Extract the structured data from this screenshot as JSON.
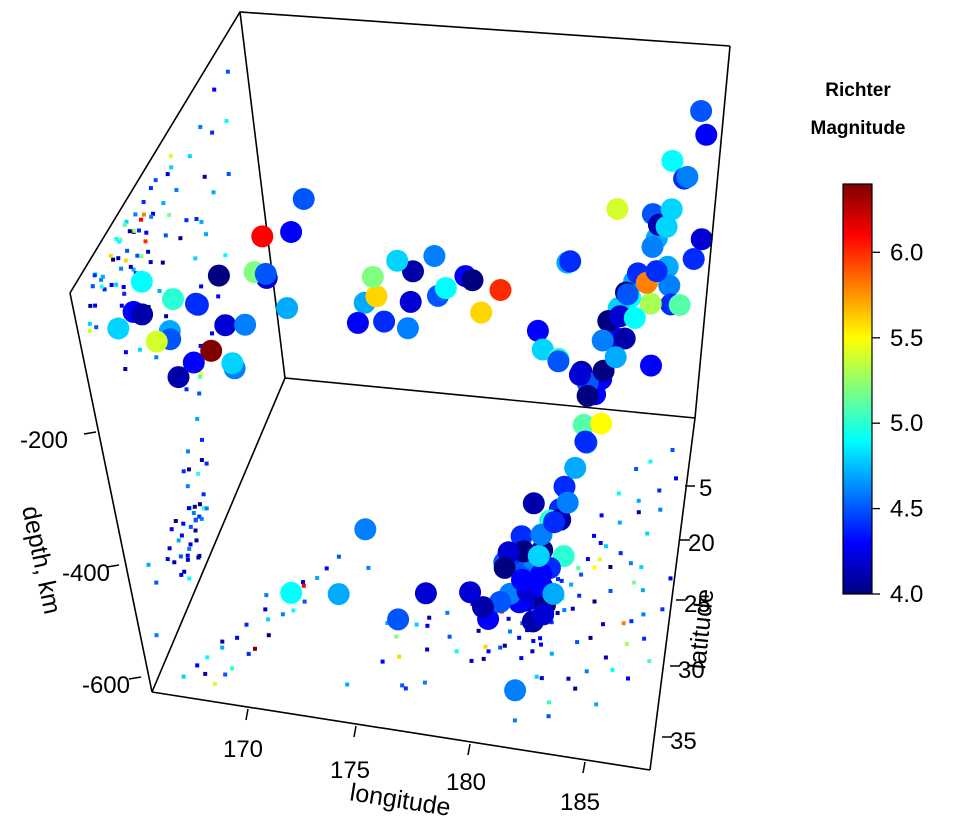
{
  "chart_data": {
    "type": "scatter",
    "subtype": "3d-scatter",
    "xlabel": "longitude",
    "ylabel": "latitude",
    "zlabel": "depth, km",
    "x_ticks": [
      "170",
      "175",
      "180",
      "185"
    ],
    "y_ticks": [
      "5",
      "20",
      "25",
      "30",
      "35"
    ],
    "z_ticks": [
      "-200",
      "-400",
      "-600"
    ],
    "xlim": [
      165,
      188
    ],
    "ylim": [
      -38,
      -10
    ],
    "zlim": [
      -680,
      0
    ],
    "colorbar": {
      "title_line1": "Richter",
      "title_line2": "Magnitude",
      "ticks": [
        "6.0",
        "5.5",
        "5.0",
        "4.5",
        "4.0"
      ],
      "range": [
        4.0,
        6.4
      ],
      "colormap": "jet"
    },
    "projection": "floor-and-wall",
    "points": [
      [
        181.62,
        -20.42,
        -562,
        4.8
      ],
      [
        181.03,
        -20.62,
        -650,
        4.2
      ],
      [
        184.1,
        -26.0,
        -42,
        5.4
      ],
      [
        181.66,
        -17.97,
        -626,
        4.1
      ],
      [
        181.96,
        -20.42,
        -649,
        4.0
      ],
      [
        184.31,
        -19.68,
        -195,
        4.0
      ],
      [
        166.1,
        -11.7,
        -82,
        4.8
      ],
      [
        181.93,
        -28.11,
        -194,
        4.4
      ],
      [
        181.74,
        -28.74,
        -211,
        4.7
      ],
      [
        179.59,
        -17.47,
        -622,
        4.3
      ],
      [
        186.16,
        -21.44,
        -42,
        4.4
      ],
      [
        181.5,
        -12.26,
        -626,
        4.6
      ],
      [
        169.92,
        -18.54,
        -649,
        4.9
      ],
      [
        182.1,
        -21.0,
        -594,
        4.4
      ],
      [
        181.4,
        -20.7,
        -607,
        4.0
      ],
      [
        182.35,
        -15.94,
        -565,
        4.2
      ],
      [
        180.9,
        -18.9,
        -616,
        4.3
      ],
      [
        176.42,
        -18.83,
        -622,
        4.2
      ],
      [
        185.7,
        -26.0,
        -103,
        4.6
      ],
      [
        180.1,
        -17.9,
        -598,
        4.5
      ],
      [
        181.66,
        -20.58,
        -622,
        4.1
      ],
      [
        186.25,
        -25.8,
        -59,
        4.8
      ],
      [
        179.45,
        -16.8,
        -587,
        4.1
      ],
      [
        182.6,
        -18.0,
        -572,
        4.7
      ],
      [
        181.7,
        -20.7,
        -529,
        4.6
      ],
      [
        180.5,
        -22.8,
        -584,
        4.4
      ],
      [
        180.9,
        -20.1,
        -589,
        4.5
      ],
      [
        182.4,
        -23.9,
        -509,
        4.4
      ],
      [
        176.0,
        -13.7,
        -563,
        4.5
      ],
      [
        181.2,
        -17.3,
        -539,
        4.3
      ],
      [
        182.6,
        -22.5,
        -603,
        5.0
      ],
      [
        173.5,
        -13.1,
        -521,
        4.7
      ],
      [
        172.8,
        -22.9,
        -611,
        4.6
      ],
      [
        184.3,
        -27.1,
        -246,
        4.8
      ],
      [
        179.9,
        -21.0,
        -595,
        4.5
      ],
      [
        182.2,
        -24.0,
        -553,
        4.4
      ],
      [
        186.0,
        -24.5,
        -120,
        5.2
      ],
      [
        183.5,
        -25.9,
        -380,
        4.3
      ],
      [
        181.9,
        -19.1,
        -564,
        4.3
      ],
      [
        181.0,
        -23.4,
        -535,
        4.1
      ],
      [
        180.4,
        -19.3,
        -612,
        4.6
      ],
      [
        178.9,
        -16.5,
        -557,
        4.2
      ],
      [
        183.9,
        -25.3,
        -418,
        5.5
      ],
      [
        185.1,
        -26.7,
        -170,
        4.4
      ],
      [
        181.6,
        -22.0,
        -586,
        4.0
      ],
      [
        182.8,
        -21.6,
        -485,
        4.6
      ],
      [
        180.3,
        -18.1,
        -540,
        4.0
      ],
      [
        184.8,
        -29.1,
        -240,
        4.7
      ],
      [
        181.3,
        -20.9,
        -580,
        4.6
      ],
      [
        185.7,
        -30.1,
        -155,
        4.1
      ],
      [
        183.3,
        -24.6,
        -440,
        4.5
      ],
      [
        182.0,
        -18.6,
        -575,
        4.3
      ],
      [
        186.8,
        -30.5,
        -72,
        4.6
      ],
      [
        187.4,
        -33.1,
        -52,
        4.3
      ],
      [
        180.7,
        -21.6,
        -600,
        4.4
      ],
      [
        181.9,
        -22.5,
        -542,
        5.0
      ],
      [
        185.6,
        -31.0,
        -200,
        4.7
      ],
      [
        184.0,
        -27.3,
        -300,
        4.3
      ],
      [
        182.3,
        -20.5,
        -499,
        4.4
      ],
      [
        181.2,
        -19.6,
        -610,
        4.2
      ],
      [
        184.5,
        -31.4,
        -322,
        4.9
      ],
      [
        183.6,
        -27.8,
        -394,
        4.3
      ],
      [
        186.3,
        -28.5,
        -88,
        4.8
      ],
      [
        182.9,
        -23.7,
        -468,
        4.7
      ],
      [
        180.8,
        -21.2,
        -575,
        4.0
      ],
      [
        185.2,
        -33.5,
        -214,
        4.5
      ],
      [
        182.5,
        -21.3,
        -511,
        4.1
      ],
      [
        183.1,
        -25.1,
        -420,
        5.1
      ],
      [
        186.6,
        -32.0,
        -110,
        4.4
      ],
      [
        184.7,
        -25.5,
        -180,
        4.0
      ],
      [
        181.5,
        -21.9,
        -610,
        4.6
      ],
      [
        183.8,
        -29.5,
        -360,
        4.3
      ],
      [
        185.9,
        -34.2,
        -130,
        4.9
      ],
      [
        180.2,
        -20.3,
        -560,
        4.2
      ],
      [
        183.4,
        -22.9,
        -400,
        4.4
      ],
      [
        187.0,
        -35.3,
        -60,
        4.5
      ],
      [
        168.6,
        -14.4,
        -70,
        4.4
      ],
      [
        167.8,
        -15.6,
        -200,
        4.3
      ],
      [
        169.5,
        -18.1,
        -170,
        4.6
      ],
      [
        168.1,
        -13.0,
        -40,
        5.0
      ],
      [
        167.3,
        -14.6,
        -130,
        4.7
      ],
      [
        170.3,
        -19.4,
        -100,
        4.5
      ],
      [
        167.0,
        -12.2,
        -60,
        4.1
      ],
      [
        169.9,
        -21.0,
        -140,
        4.2
      ],
      [
        168.9,
        -17.5,
        -230,
        4.8
      ],
      [
        167.6,
        -11.5,
        -90,
        5.4
      ],
      [
        170.8,
        -22.4,
        -80,
        4.3
      ],
      [
        169.2,
        -16.2,
        -50,
        4.0
      ],
      [
        168.4,
        -19.5,
        -280,
        4.6
      ],
      [
        166.8,
        -13.6,
        -30,
        4.9
      ],
      [
        170.0,
        -20.7,
        -60,
        6.1
      ],
      [
        168.0,
        -16.8,
        -120,
        4.4
      ],
      [
        171.2,
        -23.5,
        -40,
        4.5
      ],
      [
        167.2,
        -15.1,
        -220,
        4.1
      ],
      [
        169.7,
        -19.9,
        -110,
        5.2
      ],
      [
        168.6,
        -18.3,
        -180,
        4.2
      ],
      [
        166.5,
        -12.8,
        -70,
        4.3
      ],
      [
        170.5,
        -21.5,
        -200,
        4.7
      ],
      [
        168.8,
        -14.9,
        -160,
        6.4
      ],
      [
        167.9,
        -12.4,
        -100,
        4.5
      ],
      [
        175.5,
        -16.0,
        -40,
        5.6
      ],
      [
        176.2,
        -13.5,
        -30,
        4.4
      ],
      [
        177.0,
        -14.2,
        -50,
        4.6
      ],
      [
        174.8,
        -15.4,
        -80,
        4.3
      ],
      [
        178.1,
        -17.1,
        -30,
        4.9
      ],
      [
        176.7,
        -16.9,
        -60,
        4.2
      ],
      [
        175.1,
        -17.6,
        -40,
        5.2
      ],
      [
        177.6,
        -18.2,
        -70,
        4.5
      ],
      [
        178.9,
        -19.0,
        -50,
        4.0
      ],
      [
        179.4,
        -17.8,
        -80,
        5.6
      ],
      [
        175.9,
        -18.8,
        -30,
        4.8
      ],
      [
        176.4,
        -19.5,
        -60,
        4.1
      ],
      [
        174.5,
        -18.6,
        -110,
        4.7
      ],
      [
        177.2,
        -20.1,
        -40,
        4.6
      ],
      [
        178.3,
        -21.1,
        -90,
        4.3
      ],
      [
        179.8,
        -20.8,
        -100,
        6.0
      ],
      [
        182.9,
        -14.1,
        -60,
        5.0
      ],
      [
        183.6,
        -16.2,
        -130,
        4.2
      ],
      [
        184.4,
        -17.0,
        -80,
        4.6
      ],
      [
        183.0,
        -13.0,
        -40,
        4.5
      ],
      [
        185.2,
        -18.3,
        -100,
        4.1
      ],
      [
        186.1,
        -19.6,
        -60,
        5.3
      ],
      [
        184.0,
        -15.5,
        -150,
        4.0
      ],
      [
        185.6,
        -17.4,
        -40,
        4.9
      ],
      [
        186.9,
        -20.2,
        -70,
        4.4
      ],
      [
        185.1,
        -14.5,
        -50,
        4.7
      ],
      [
        186.4,
        -16.9,
        -110,
        4.3
      ],
      [
        187.3,
        -18.5,
        -30,
        5.1
      ],
      [
        184.8,
        -20.9,
        -120,
        4.2
      ],
      [
        183.7,
        -19.2,
        -210,
        4.5
      ],
      [
        186.7,
        -22.1,
        -80,
        4.6
      ],
      [
        182.1,
        -16.0,
        -90,
        4.8
      ],
      [
        184.2,
        -22.6,
        -170,
        4.0
      ],
      [
        185.8,
        -21.2,
        -60,
        5.8
      ],
      [
        187.6,
        -22.7,
        -40,
        4.4
      ],
      [
        183.2,
        -21.8,
        -250,
        4.1
      ],
      [
        181.6,
        -18.8,
        -120,
        4.3
      ],
      [
        186.5,
        -24.0,
        -90,
        4.7
      ],
      [
        184.9,
        -23.6,
        -140,
        4.5
      ],
      [
        187.8,
        -25.2,
        -60,
        4.2
      ]
    ]
  }
}
